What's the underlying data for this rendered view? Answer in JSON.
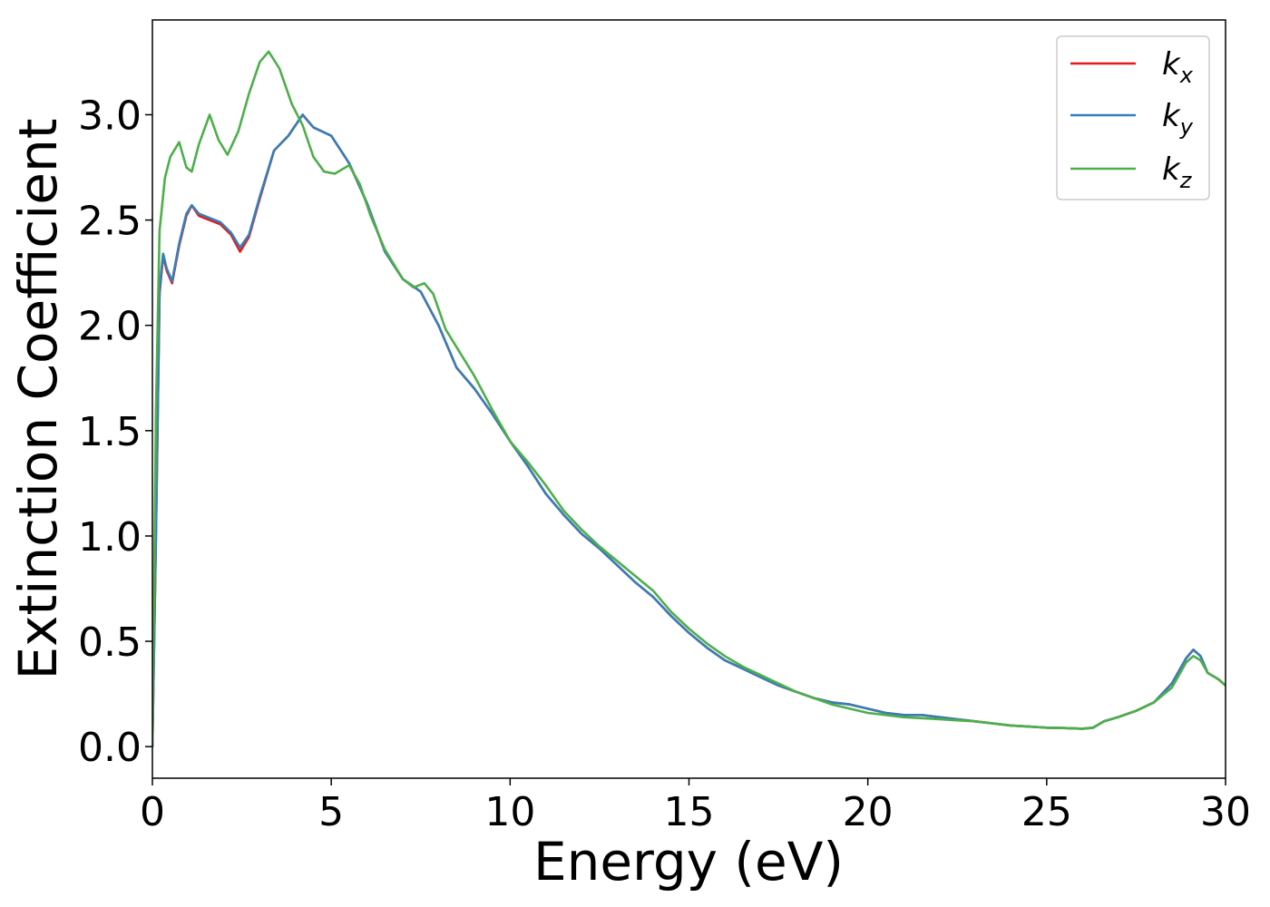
{
  "chart_data": {
    "type": "line",
    "title": "",
    "xlabel": "Energy (eV)",
    "ylabel": "Extinction Coefficient",
    "xlim": [
      0,
      30
    ],
    "ylim": [
      -0.15,
      3.45
    ],
    "xticks": [
      0,
      5,
      10,
      15,
      20,
      25,
      30
    ],
    "xtick_labels": [
      "0",
      "5",
      "10",
      "15",
      "20",
      "25",
      "30"
    ],
    "yticks": [
      0.0,
      0.5,
      1.0,
      1.5,
      2.0,
      2.5,
      3.0
    ],
    "ytick_labels": [
      "0.0",
      "0.5",
      "1.0",
      "1.5",
      "2.0",
      "2.5",
      "3.0"
    ],
    "grid": false,
    "legend_position": "top-right",
    "series": [
      {
        "name": "k_x",
        "label_main": "k",
        "label_sub": "x",
        "color": "#e41a1c",
        "x": [
          0,
          0.1,
          0.2,
          0.3,
          0.4,
          0.55,
          0.75,
          0.95,
          1.1,
          1.3,
          1.6,
          1.9,
          2.2,
          2.45,
          2.7,
          3.0,
          3.4,
          3.8,
          4.2,
          4.5,
          5.0,
          5.5,
          6.0,
          6.5,
          7.0,
          7.5,
          8.0,
          8.5,
          9.0,
          9.5,
          10.0,
          10.5,
          11.0,
          11.5,
          12.0,
          12.5,
          13.0,
          13.5,
          14.0,
          14.5,
          15.0,
          15.5,
          16.0,
          16.5,
          17.0,
          17.5,
          18.0,
          18.5,
          19.0,
          19.5,
          20.0,
          20.5,
          21.0,
          21.5,
          22.0,
          22.5,
          23.0,
          23.5,
          24.0,
          24.5,
          25.0,
          25.5,
          26.0,
          26.3,
          26.6,
          27.0,
          27.5,
          28.0,
          28.5,
          28.9,
          29.1,
          29.3,
          29.5,
          29.8,
          30.0
        ],
        "values": [
          0.0,
          1.0,
          2.15,
          2.33,
          2.26,
          2.2,
          2.38,
          2.52,
          2.57,
          2.52,
          2.5,
          2.48,
          2.43,
          2.35,
          2.42,
          2.6,
          2.83,
          2.9,
          3.0,
          2.94,
          2.9,
          2.77,
          2.58,
          2.35,
          2.22,
          2.16,
          2.0,
          1.8,
          1.7,
          1.58,
          1.45,
          1.33,
          1.2,
          1.1,
          1.01,
          0.94,
          0.86,
          0.78,
          0.71,
          0.62,
          0.54,
          0.47,
          0.41,
          0.37,
          0.33,
          0.29,
          0.26,
          0.23,
          0.21,
          0.2,
          0.18,
          0.16,
          0.15,
          0.15,
          0.14,
          0.13,
          0.12,
          0.11,
          0.1,
          0.095,
          0.09,
          0.088,
          0.085,
          0.09,
          0.12,
          0.14,
          0.17,
          0.21,
          0.3,
          0.42,
          0.46,
          0.43,
          0.35,
          0.32,
          0.29
        ]
      },
      {
        "name": "k_y",
        "label_main": "k",
        "label_sub": "y",
        "color": "#377eb8",
        "x": [
          0,
          0.1,
          0.2,
          0.3,
          0.4,
          0.55,
          0.75,
          0.95,
          1.1,
          1.3,
          1.6,
          1.9,
          2.2,
          2.45,
          2.7,
          3.0,
          3.4,
          3.8,
          4.2,
          4.5,
          5.0,
          5.5,
          6.0,
          6.5,
          7.0,
          7.5,
          8.0,
          8.5,
          9.0,
          9.5,
          10.0,
          10.5,
          11.0,
          11.5,
          12.0,
          12.5,
          13.0,
          13.5,
          14.0,
          14.5,
          15.0,
          15.5,
          16.0,
          16.5,
          17.0,
          17.5,
          18.0,
          18.5,
          19.0,
          19.5,
          20.0,
          20.5,
          21.0,
          21.5,
          22.0,
          22.5,
          23.0,
          23.5,
          24.0,
          24.5,
          25.0,
          25.5,
          26.0,
          26.3,
          26.6,
          27.0,
          27.5,
          28.0,
          28.5,
          28.9,
          29.1,
          29.3,
          29.5,
          29.8,
          30.0
        ],
        "values": [
          0.0,
          1.02,
          2.17,
          2.34,
          2.27,
          2.21,
          2.39,
          2.53,
          2.57,
          2.53,
          2.51,
          2.49,
          2.44,
          2.37,
          2.43,
          2.61,
          2.83,
          2.9,
          3.0,
          2.94,
          2.9,
          2.77,
          2.58,
          2.35,
          2.22,
          2.16,
          2.0,
          1.8,
          1.7,
          1.58,
          1.45,
          1.33,
          1.2,
          1.1,
          1.01,
          0.94,
          0.86,
          0.78,
          0.71,
          0.62,
          0.54,
          0.47,
          0.41,
          0.37,
          0.33,
          0.29,
          0.26,
          0.23,
          0.21,
          0.2,
          0.18,
          0.16,
          0.15,
          0.15,
          0.14,
          0.13,
          0.12,
          0.11,
          0.1,
          0.095,
          0.09,
          0.088,
          0.085,
          0.09,
          0.12,
          0.14,
          0.17,
          0.21,
          0.3,
          0.42,
          0.46,
          0.43,
          0.35,
          0.32,
          0.29
        ]
      },
      {
        "name": "k_z",
        "label_main": "k",
        "label_sub": "z",
        "color": "#4daf4a",
        "x": [
          0,
          0.1,
          0.2,
          0.35,
          0.5,
          0.75,
          0.95,
          1.1,
          1.3,
          1.6,
          1.85,
          2.1,
          2.4,
          2.7,
          3.0,
          3.25,
          3.55,
          3.9,
          4.2,
          4.5,
          4.8,
          5.1,
          5.5,
          5.8,
          6.1,
          6.5,
          7.0,
          7.3,
          7.6,
          7.85,
          8.2,
          8.6,
          9.0,
          9.5,
          10.0,
          10.5,
          11.0,
          11.5,
          12.0,
          12.5,
          13.0,
          13.5,
          14.0,
          14.5,
          15.0,
          15.5,
          16.0,
          16.5,
          17.0,
          17.5,
          18.0,
          18.5,
          19.0,
          19.5,
          20.0,
          20.5,
          21.0,
          21.5,
          22.0,
          22.5,
          23.0,
          23.5,
          24.0,
          24.5,
          25.0,
          25.5,
          26.0,
          26.3,
          26.6,
          27.0,
          27.5,
          28.0,
          28.5,
          28.9,
          29.1,
          29.3,
          29.5,
          29.8,
          30.0
        ],
        "values": [
          0.0,
          1.6,
          2.45,
          2.7,
          2.8,
          2.87,
          2.75,
          2.73,
          2.86,
          3.0,
          2.88,
          2.81,
          2.92,
          3.1,
          3.25,
          3.3,
          3.22,
          3.05,
          2.95,
          2.8,
          2.73,
          2.72,
          2.76,
          2.67,
          2.52,
          2.36,
          2.22,
          2.18,
          2.2,
          2.15,
          1.98,
          1.87,
          1.76,
          1.6,
          1.45,
          1.35,
          1.24,
          1.12,
          1.03,
          0.95,
          0.88,
          0.81,
          0.74,
          0.64,
          0.56,
          0.49,
          0.43,
          0.38,
          0.34,
          0.3,
          0.26,
          0.23,
          0.2,
          0.18,
          0.16,
          0.15,
          0.14,
          0.135,
          0.13,
          0.125,
          0.12,
          0.11,
          0.1,
          0.095,
          0.09,
          0.088,
          0.085,
          0.09,
          0.12,
          0.14,
          0.17,
          0.21,
          0.28,
          0.4,
          0.43,
          0.41,
          0.35,
          0.32,
          0.29
        ]
      }
    ]
  }
}
